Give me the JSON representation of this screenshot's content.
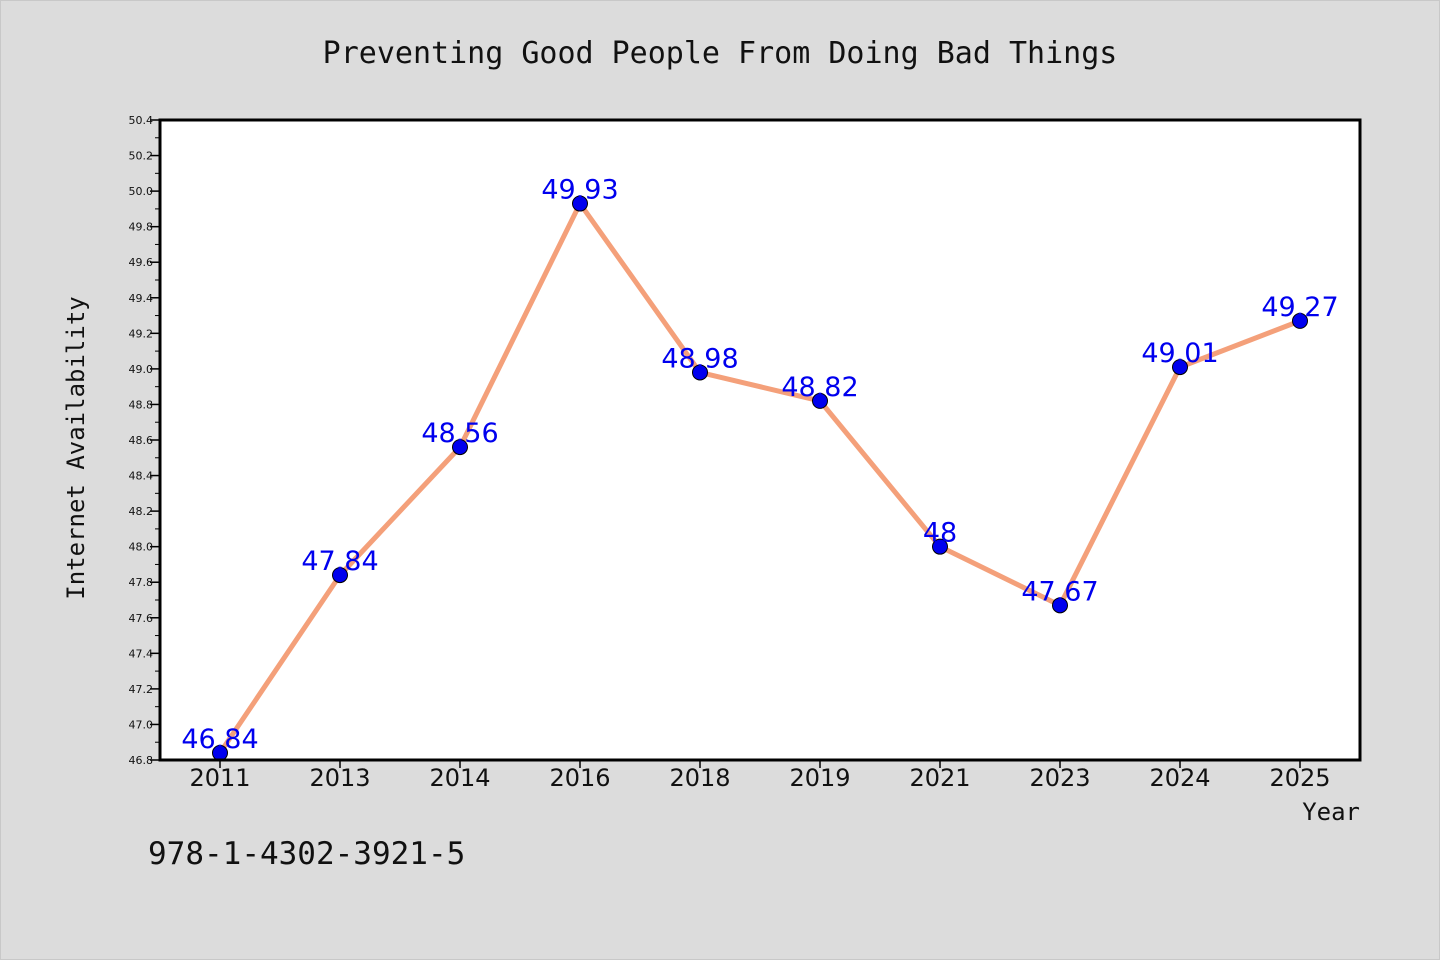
{
  "chart_data": {
    "type": "line",
    "title": "Preventing Good People From Doing Bad Things",
    "xlabel": "Year",
    "ylabel": "Internet Availability",
    "categories": [
      "2011",
      "2013",
      "2014",
      "2016",
      "2018",
      "2019",
      "2021",
      "2023",
      "2024",
      "2025"
    ],
    "series": [
      {
        "values": [
          46.84,
          47.84,
          48.56,
          49.93,
          48.98,
          48.82,
          48,
          47.67,
          49.01,
          49.27
        ],
        "labels": [
          "46.84",
          "47.84",
          "48.56",
          "49.93",
          "48.98",
          "48.82",
          "48",
          "47.67",
          "49.01",
          "49.27"
        ]
      }
    ],
    "ylim": [
      46.8,
      50.4
    ],
    "yticks": [
      "46.8",
      "47.0",
      "47.2",
      "47.4",
      "47.6",
      "47.8",
      "48.0",
      "48.2",
      "48.4",
      "48.6",
      "48.8",
      "49.0",
      "49.2",
      "49.4",
      "49.6",
      "49.8",
      "50.0",
      "50.2",
      "50.4"
    ],
    "grid": false,
    "colors": {
      "line": "#f4a07a",
      "marker": "#0000ee",
      "label": "#0000ee",
      "background": "#dcdcdc",
      "plot_background": "#ffffff"
    }
  },
  "footer": {
    "isbn": "978-1-4302-3921-5"
  }
}
